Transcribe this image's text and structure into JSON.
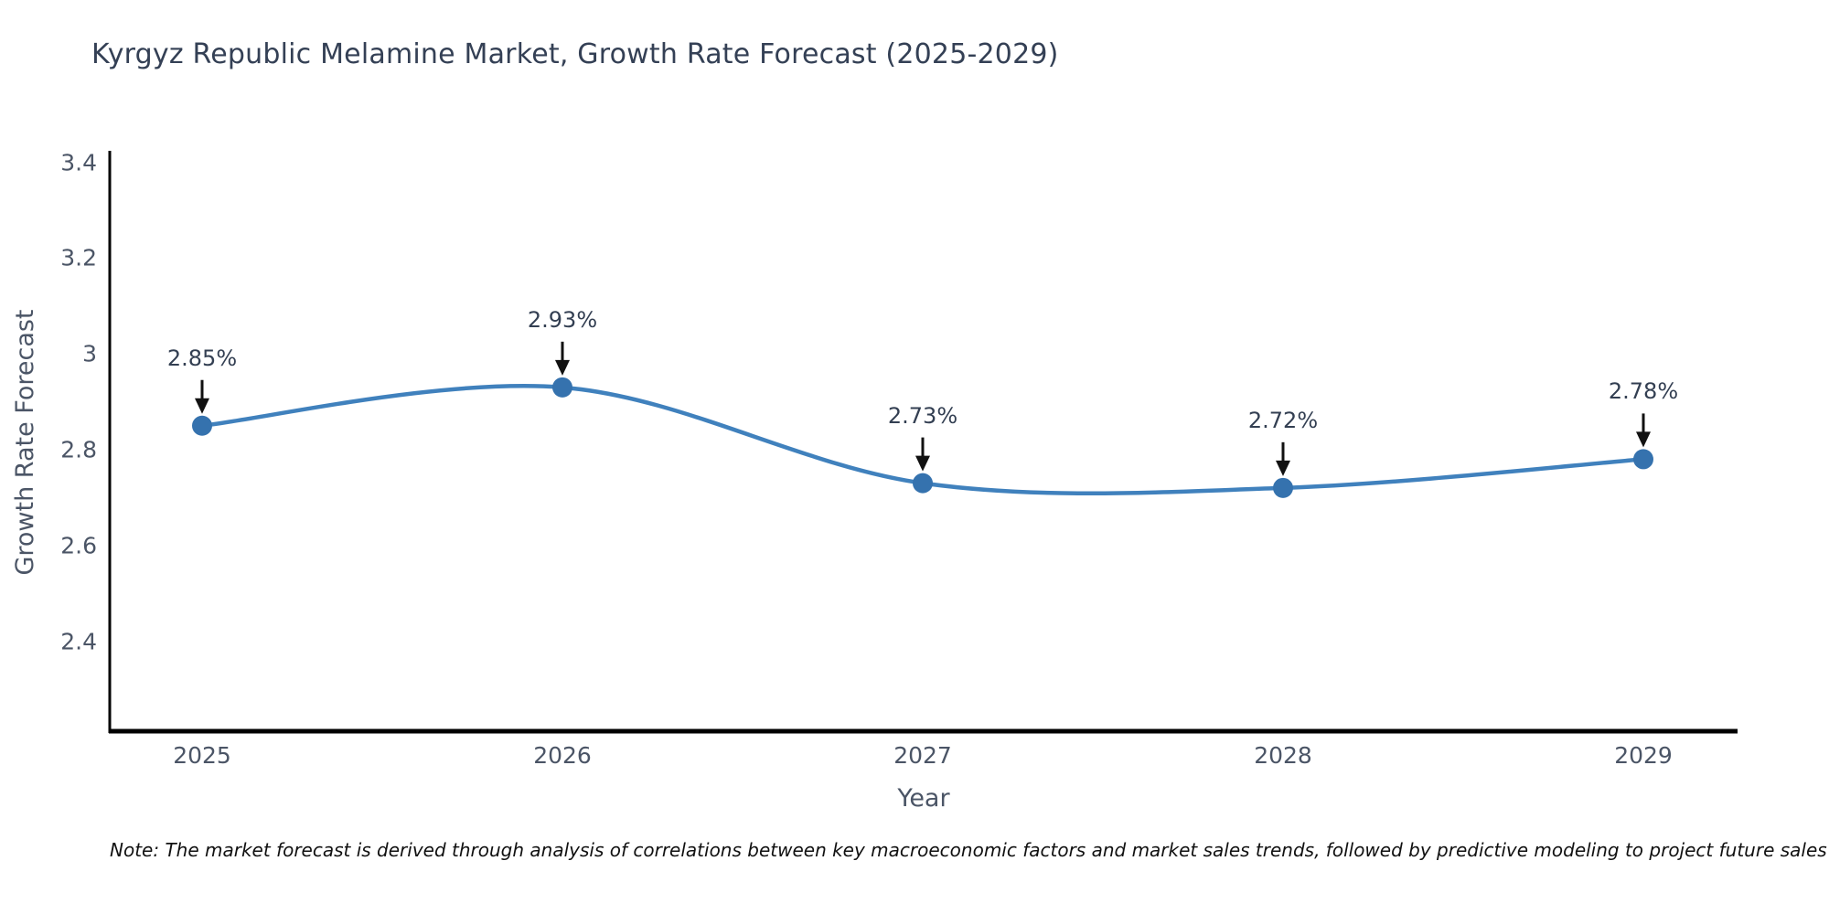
{
  "header": {
    "title": "Kyrgyz Republic Melamine Market, Growth Rate Forecast (2025-2029)"
  },
  "footer": {
    "note": "Note: The market forecast is derived through analysis of correlations between key macroeconomic factors and market sales trends, followed by predictive modeling to project future sales"
  },
  "chart_data": {
    "type": "line",
    "title": "Kyrgyz Republic Melamine Market, Growth Rate Forecast (2025-2029)",
    "xlabel": "Year",
    "ylabel": "Growth Rate Forecast",
    "categories": [
      "2025",
      "2026",
      "2027",
      "2028",
      "2029"
    ],
    "series": [
      {
        "name": "Growth Rate Forecast",
        "values": [
          2.85,
          2.93,
          2.73,
          2.72,
          2.78
        ]
      }
    ],
    "point_labels": [
      "2.85%",
      "2.93%",
      "2.73%",
      "2.72%",
      "2.78%"
    ],
    "yticks": [
      3.4,
      3.2,
      3.0,
      2.8,
      2.6,
      2.4
    ],
    "ytick_labels": [
      "3.4",
      "3.2",
      "3",
      "2.8",
      "2.6",
      "2.4"
    ],
    "ylim": [
      2.212,
      3.424
    ],
    "grid": false,
    "legend": "none",
    "smooth_spline": true,
    "line_color": "#4081bd",
    "marker_color": "#3572ae",
    "annotation_arrow_color": "#111111",
    "axis_line_color": "#000000"
  },
  "colors": {
    "title_text": "#344055",
    "tick_text": "#4b5566",
    "axis_title_text": "#4b5566",
    "annotation_text": "#333f52",
    "note_text": "#111111",
    "background": "#ffffff"
  }
}
